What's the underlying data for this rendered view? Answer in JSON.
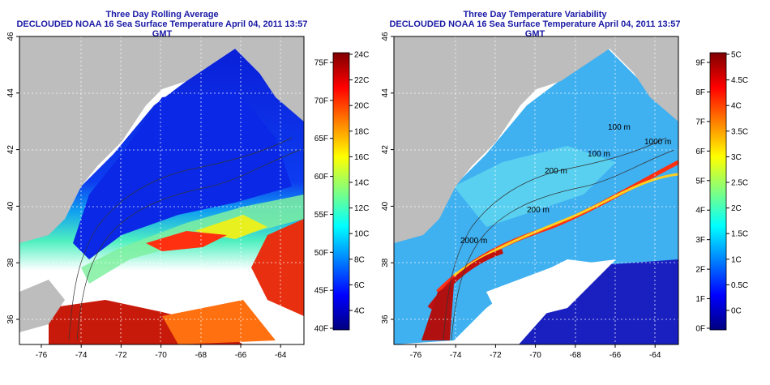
{
  "left_panel": {
    "title_line1": "Three Day Rolling Average",
    "title_line2": "DECLOUDED NOAA 16 Sea Surface Temperature April 04, 2011 13:57 GMT",
    "colorbar": {
      "fahrenheit": [
        "75F",
        "70F",
        "65F",
        "60F",
        "55F",
        "50F",
        "45F",
        "40F"
      ],
      "celsius": [
        "24C",
        "22C",
        "20C",
        "18C",
        "16C",
        "14C",
        "12C",
        "10C",
        "8C",
        "6C",
        "4C"
      ],
      "colors": [
        "#00007f",
        "#0000ff",
        "#0080ff",
        "#00ffff",
        "#80ff80",
        "#ffff00",
        "#ff8000",
        "#ff0000",
        "#7f0000"
      ]
    }
  },
  "right_panel": {
    "title_line1": "Three Day Temperature Variability",
    "title_line2": "DECLOUDED NOAA 16 Sea Surface Temperature April 04, 2011 13:57 GMT",
    "colorbar": {
      "fahrenheit": [
        "9F",
        "8F",
        "7F",
        "6F",
        "5F",
        "4F",
        "3F",
        "2F",
        "1F",
        "0F"
      ],
      "celsius": [
        "5C",
        "4.5C",
        "4C",
        "3.5C",
        "3C",
        "2.5C",
        "2C",
        "1.5C",
        "1C",
        "0.5C",
        "0C"
      ],
      "colors": [
        "#00007f",
        "#0000ff",
        "#0080ff",
        "#00ffff",
        "#80ff80",
        "#ffff00",
        "#ff8000",
        "#ff0000",
        "#7f0000"
      ]
    },
    "contour_labels": [
      "100 m",
      "1000 m",
      "200 m",
      "100 m",
      "200 m",
      "2000 m"
    ]
  },
  "axes": {
    "x_ticks": [
      "-76",
      "-74",
      "-72",
      "-70",
      "-68",
      "-66",
      "-64"
    ],
    "y_ticks": [
      "36",
      "38",
      "40",
      "42",
      "44",
      "46"
    ]
  },
  "colors": {
    "land": "#bdbdbd",
    "no_data": "#ffffff",
    "title": "#1a1aa6"
  }
}
